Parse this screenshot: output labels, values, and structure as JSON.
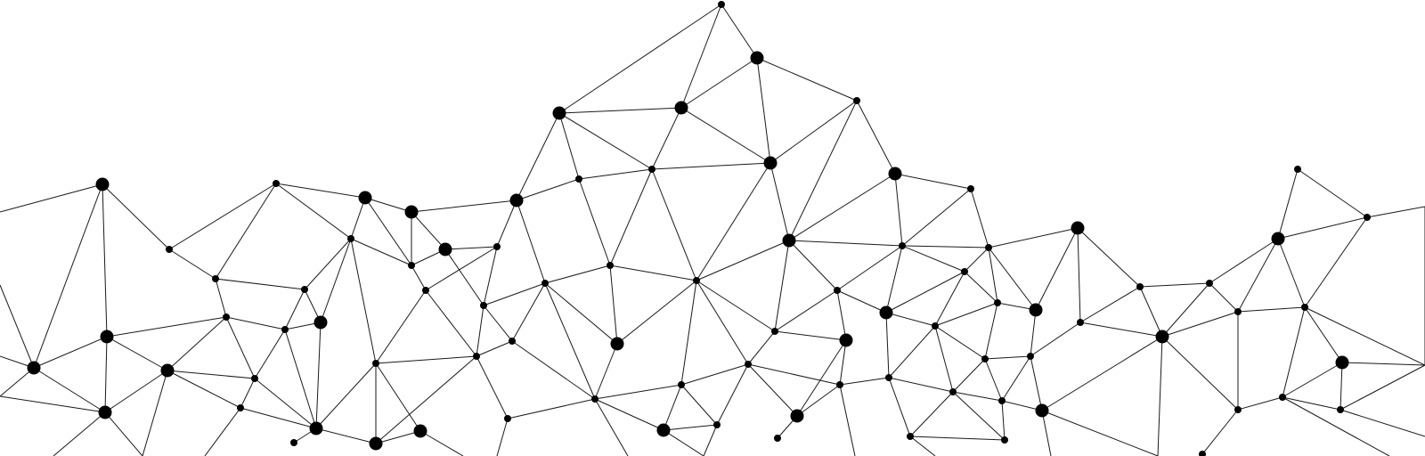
{
  "graphic": {
    "description_kind": "decorative-network",
    "colors": {
      "background": "#ffffff",
      "edge": "#1a1a1a",
      "node": "#000000"
    }
  }
}
